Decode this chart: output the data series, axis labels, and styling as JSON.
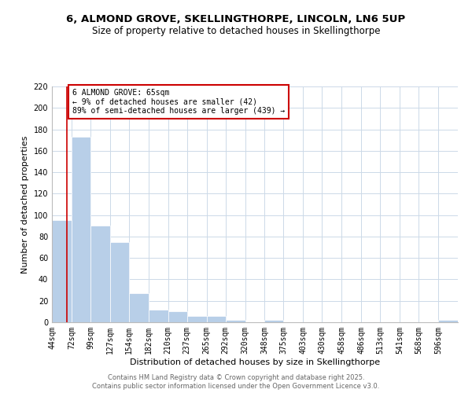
{
  "title1": "6, ALMOND GROVE, SKELLINGTHORPE, LINCOLN, LN6 5UP",
  "title2": "Size of property relative to detached houses in Skellingthorpe",
  "xlabel": "Distribution of detached houses by size in Skellingthorpe",
  "ylabel": "Number of detached properties",
  "bar_labels": [
    "44sqm",
    "72sqm",
    "99sqm",
    "127sqm",
    "154sqm",
    "182sqm",
    "210sqm",
    "237sqm",
    "265sqm",
    "292sqm",
    "320sqm",
    "348sqm",
    "375sqm",
    "403sqm",
    "430sqm",
    "458sqm",
    "486sqm",
    "513sqm",
    "541sqm",
    "568sqm",
    "596sqm"
  ],
  "bar_values": [
    95,
    173,
    90,
    75,
    27,
    12,
    10,
    6,
    6,
    2,
    0,
    2,
    0,
    0,
    0,
    0,
    0,
    0,
    0,
    0,
    2
  ],
  "bar_color": "#b8cfe8",
  "red_line_x": 65,
  "bin_edges": [
    44,
    72,
    99,
    127,
    154,
    182,
    210,
    237,
    265,
    292,
    320,
    348,
    375,
    403,
    430,
    458,
    486,
    513,
    541,
    568,
    596,
    624
  ],
  "ylim": [
    0,
    220
  ],
  "yticks": [
    0,
    20,
    40,
    60,
    80,
    100,
    120,
    140,
    160,
    180,
    200,
    220
  ],
  "annotation_line1": "6 ALMOND GROVE: 65sqm",
  "annotation_line2": "← 9% of detached houses are smaller (42)",
  "annotation_line3": "89% of semi-detached houses are larger (439) →",
  "annotation_box_color": "#ffffff",
  "annotation_box_edge_color": "#cc0000",
  "red_line_color": "#cc0000",
  "background_color": "#ffffff",
  "grid_color": "#ccd9e8",
  "footer1": "Contains HM Land Registry data © Crown copyright and database right 2025.",
  "footer2": "Contains public sector information licensed under the Open Government Licence v3.0.",
  "title_fontsize": 9.5,
  "subtitle_fontsize": 8.5,
  "annotation_fontsize": 7,
  "tick_fontsize": 7,
  "axis_label_fontsize": 8
}
